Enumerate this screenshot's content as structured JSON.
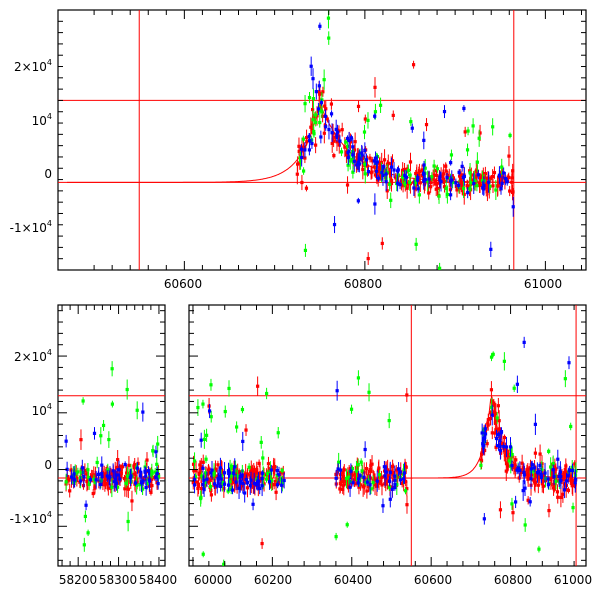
{
  "chart_data": [
    {
      "type": "scatter",
      "title": "",
      "xlabel": "",
      "ylabel": "",
      "xlim": [
        60460,
        61045
      ],
      "ylim": [
        -17000,
        29000
      ],
      "xticks": [
        60600,
        60800,
        61000
      ],
      "xtick_labels": [
        "60600",
        "60800",
        "61000"
      ],
      "yticks": [
        -10000,
        0,
        10000,
        20000
      ],
      "ytick_labels": [
        {
          "base": "-1×10",
          "exp": "4"
        },
        {
          "base": "0",
          "exp": ""
        },
        {
          "base": "10",
          "exp": "4"
        },
        {
          "base": "2×10",
          "exp": "4"
        }
      ],
      "hlines": [
        13000,
        -1500
      ],
      "vlines": [
        60550,
        60965
      ],
      "model_curve": {
        "baseline": -1500,
        "peak_x": 60750,
        "peak_y": 12500,
        "rise_tau": 20,
        "decay_tau": 35,
        "x_start": 60470,
        "x_end": 60965
      },
      "series": [
        {
          "name": "red",
          "color": "#ff0000",
          "seed": 11,
          "ranges": [
            [
              60725,
              60965
            ]
          ],
          "count": 260,
          "outlier_frac": 0.06
        },
        {
          "name": "green",
          "color": "#00ff00",
          "seed": 23,
          "ranges": [
            [
              60725,
              60965
            ]
          ],
          "count": 90,
          "outlier_frac": 0.25
        },
        {
          "name": "blue",
          "color": "#0000ff",
          "seed": 37,
          "ranges": [
            [
              60725,
              60965
            ]
          ],
          "count": 110,
          "outlier_frac": 0.15
        }
      ]
    },
    {
      "type": "scatter",
      "title": "",
      "xlabel": "",
      "ylabel": "",
      "broken_axis": true,
      "segments": [
        {
          "xlim": [
            58150,
            58415
          ],
          "xticks": [
            58200,
            58300,
            58400
          ],
          "xtick_labels": [
            "58200",
            "58300",
            "58400"
          ]
        },
        {
          "xlim": [
            59990,
            60990
          ],
          "xticks": [
            60000,
            60200,
            60400,
            60600,
            60800,
            61000
          ],
          "xtick_labels": [
            "60000",
            "60200",
            "60400",
            "60600",
            "60800",
            "61000"
          ]
        }
      ],
      "ylim": [
        -17000,
        29000
      ],
      "yticks": [
        -10000,
        0,
        10000,
        20000
      ],
      "ytick_labels": [
        {
          "base": "-1×10",
          "exp": "4"
        },
        {
          "base": "0",
          "exp": ""
        },
        {
          "base": "10",
          "exp": "4"
        },
        {
          "base": "2×10",
          "exp": "4"
        }
      ],
      "hlines": [
        13000,
        -1500
      ],
      "vlines": [
        60550,
        60965
      ],
      "model_curve": {
        "baseline": -1500,
        "peak_x": 60750,
        "peak_y": 12500,
        "rise_tau": 20,
        "decay_tau": 35,
        "x_start": 60400,
        "x_end": 60965
      },
      "series": [
        {
          "name": "red",
          "color": "#ff0000",
          "seed": 51,
          "ranges": [
            [
              58170,
              58400
            ],
            [
              60000,
              60230
            ],
            [
              60360,
              60540
            ],
            [
              60725,
              60965
            ]
          ],
          "count": 520,
          "outlier_frac": 0.05
        },
        {
          "name": "green",
          "color": "#00ff00",
          "seed": 63,
          "ranges": [
            [
              58170,
              58400
            ],
            [
              60000,
              60230
            ],
            [
              60360,
              60540
            ],
            [
              60725,
              60965
            ]
          ],
          "count": 170,
          "outlier_frac": 0.3
        },
        {
          "name": "blue",
          "color": "#0000ff",
          "seed": 77,
          "ranges": [
            [
              58170,
              58400
            ],
            [
              60000,
              60230
            ],
            [
              60360,
              60540
            ],
            [
              60725,
              60965
            ]
          ],
          "count": 200,
          "outlier_frac": 0.15
        }
      ]
    }
  ]
}
